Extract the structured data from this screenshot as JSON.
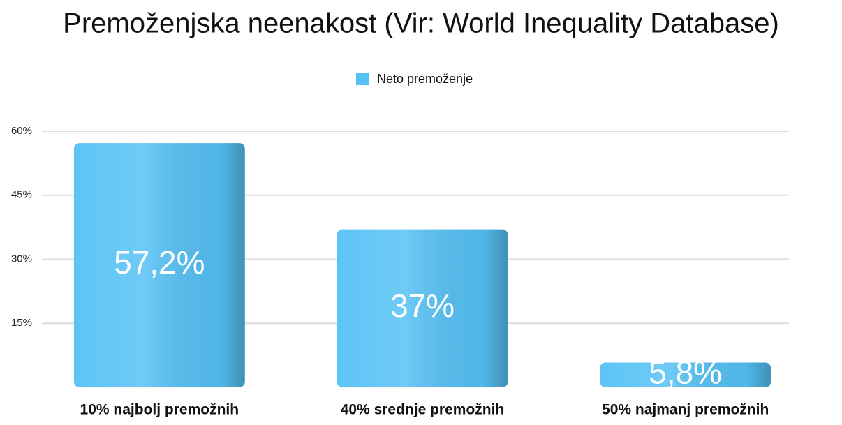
{
  "chart_data": {
    "type": "bar",
    "title": "Premoženjska neenakost (Vir: World Inequality Database)",
    "categories": [
      "10% najbolj premožnih",
      "40% srednje premožnih",
      "50% najmanj premožnih"
    ],
    "series": [
      {
        "name": "Neto premoženje",
        "color": "#55c1f5",
        "values": [
          57.2,
          37,
          5.8
        ],
        "value_labels": [
          "57,2%",
          "37%",
          "5,8%"
        ]
      }
    ],
    "ylim": [
      0,
      60
    ],
    "yticks": [
      {
        "value": 15,
        "label": "15%"
      },
      {
        "value": 30,
        "label": "30%"
      },
      {
        "value": 45,
        "label": "45%"
      },
      {
        "value": 60,
        "label": "60%"
      }
    ],
    "grid": true,
    "legend": "top"
  }
}
